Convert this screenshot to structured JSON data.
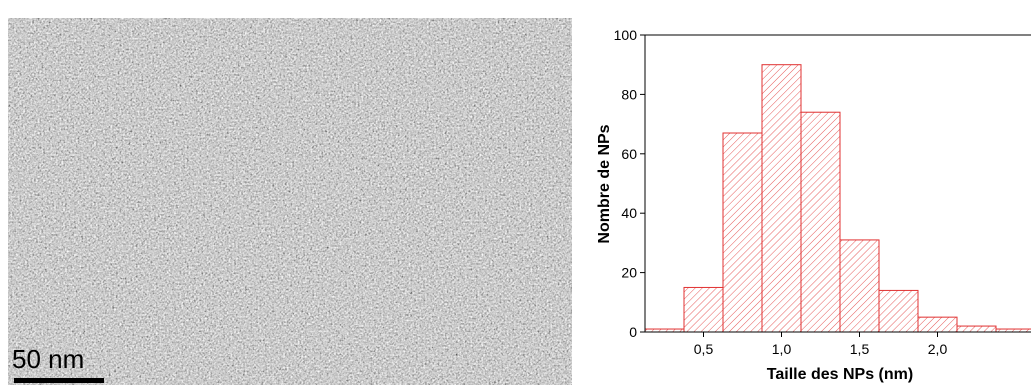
{
  "micrograph": {
    "scale_label": "50 nm"
  },
  "chart_data": {
    "type": "histogram",
    "xlabel": "Taille des NPs (nm)",
    "ylabel": "Nombre de NPs",
    "bins": [
      0.125,
      0.375,
      0.625,
      0.875,
      1.125,
      1.375,
      1.625,
      1.875,
      2.125,
      2.375,
      2.625
    ],
    "values": [
      1,
      15,
      67,
      90,
      74,
      31,
      14,
      5,
      2,
      1
    ],
    "color": "#e03030",
    "xlim": [
      0.125,
      2.625
    ],
    "ylim": [
      0,
      100
    ],
    "xticks": [
      {
        "value": 0.5,
        "label": "0,5"
      },
      {
        "value": 1.0,
        "label": "1,0"
      },
      {
        "value": 1.5,
        "label": "1,5"
      },
      {
        "value": 2.0,
        "label": "2,0"
      }
    ],
    "yticks": [
      0,
      20,
      40,
      60,
      80,
      100
    ]
  }
}
